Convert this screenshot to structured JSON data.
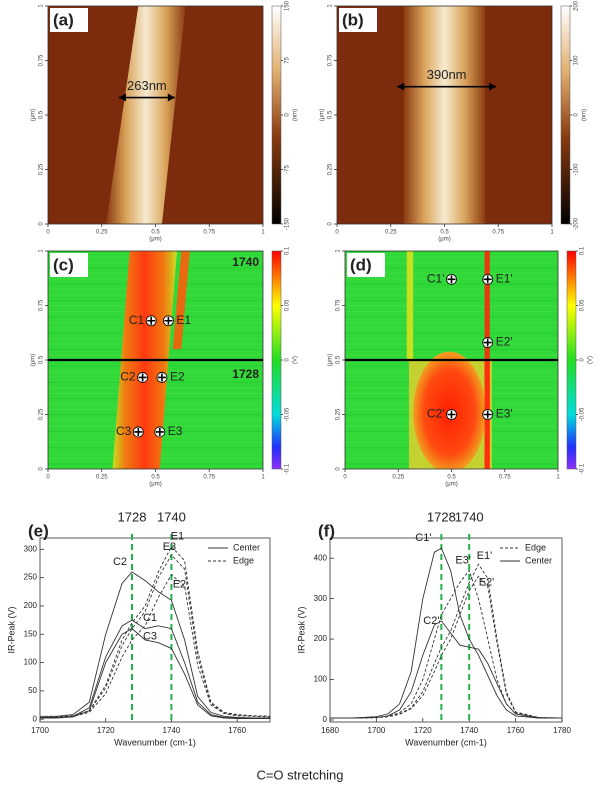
{
  "figure": {
    "panels": [
      {
        "label": "(a)",
        "kind": "height",
        "xlim": [
          0,
          1
        ],
        "ylim": [
          0,
          1
        ],
        "xticks": [
          0,
          0.25,
          0.5,
          0.75,
          1
        ],
        "yticks": [
          0,
          0.25,
          0.5,
          0.75,
          1
        ],
        "xlabel": "(μm)",
        "ylabel": "(μm)",
        "colorbar": {
          "lim": [
            -150,
            150
          ],
          "ticks": [
            150,
            75,
            0,
            -75,
            -150
          ],
          "label": "(nm)"
        },
        "width_label": "263nm"
      },
      {
        "label": "(b)",
        "kind": "height",
        "xlim": [
          0,
          1
        ],
        "ylim": [
          0,
          1
        ],
        "xticks": [
          0,
          0.25,
          0.5,
          0.75,
          1
        ],
        "yticks": [
          0,
          0.25,
          0.5,
          0.75,
          1
        ],
        "xlabel": "(μm)",
        "ylabel": "(μm)",
        "colorbar": {
          "lim": [
            -200,
            200
          ],
          "ticks": [
            200,
            100,
            0,
            -100,
            -200
          ],
          "label": "(nm)"
        },
        "width_label": "390nm"
      },
      {
        "label": "(c)",
        "kind": "ir",
        "xlim": [
          0,
          1
        ],
        "ylim": [
          0,
          1
        ],
        "xticks": [
          0,
          0.25,
          0.5,
          0.75,
          1
        ],
        "yticks": [
          0,
          0.25,
          0.5,
          0.75,
          1
        ],
        "xlabel": "(μm)",
        "ylabel": "(μm)",
        "colorbar": {
          "lim": [
            -0.1,
            0.1
          ],
          "ticks": [
            0.1,
            0.05,
            0,
            -0.05,
            -0.1
          ],
          "label": "(V)"
        },
        "divider_y": 0.5,
        "map_labels": [
          "1740",
          "1728"
        ],
        "points": [
          {
            "label": "C1",
            "x": 0.48,
            "y": 0.68
          },
          {
            "label": "E1",
            "x": 0.56,
            "y": 0.68
          },
          {
            "label": "C2",
            "x": 0.44,
            "y": 0.42
          },
          {
            "label": "E2",
            "x": 0.53,
            "y": 0.42
          },
          {
            "label": "C3",
            "x": 0.42,
            "y": 0.17
          },
          {
            "label": "E3",
            "x": 0.52,
            "y": 0.17
          }
        ]
      },
      {
        "label": "(d)",
        "kind": "ir",
        "xlim": [
          0,
          1
        ],
        "ylim": [
          0,
          1
        ],
        "xticks": [
          0,
          0.25,
          0.5,
          0.75,
          1
        ],
        "yticks": [
          0,
          0.25,
          0.5,
          0.75,
          1
        ],
        "xlabel": "(μm)",
        "ylabel": "(μm)",
        "colorbar": {
          "lim": [
            -0.1,
            0.1
          ],
          "ticks": [
            0.1,
            0.05,
            0,
            -0.05,
            -0.1
          ],
          "label": "(V)"
        },
        "divider_y": 0.5,
        "points": [
          {
            "label": "C1'",
            "x": 0.5,
            "y": 0.87
          },
          {
            "label": "E1'",
            "x": 0.67,
            "y": 0.87
          },
          {
            "label": "E2'",
            "x": 0.67,
            "y": 0.58
          },
          {
            "label": "C2'",
            "x": 0.5,
            "y": 0.25
          },
          {
            "label": "E3'",
            "x": 0.67,
            "y": 0.25
          }
        ]
      }
    ],
    "caption": "C=O stretching"
  },
  "chart_data": [
    {
      "type": "line",
      "panel_label": "(e)",
      "xlabel": "Wavenumber (cm-1)",
      "ylabel": "IR-Peak (V)",
      "xlim": [
        1700,
        1770
      ],
      "ylim": [
        -5,
        320
      ],
      "xticks": [
        1700,
        1720,
        1740,
        1760
      ],
      "yticks": [
        0,
        50,
        100,
        150,
        200,
        250,
        300
      ],
      "vlines": [
        1728,
        1740
      ],
      "vline_color": "#22b04a",
      "legend": {
        "position": "upper right",
        "entries": [
          {
            "name": "Center",
            "style": "solid"
          },
          {
            "name": "Edge",
            "style": "dashed"
          }
        ]
      },
      "x": [
        1700,
        1705,
        1710,
        1715,
        1720,
        1725,
        1728,
        1732,
        1736,
        1740,
        1744,
        1748,
        1752,
        1756,
        1760,
        1765,
        1770
      ],
      "series": [
        {
          "label": "C1",
          "style": "solid",
          "color": "#333333",
          "values": [
            3,
            3,
            5,
            20,
            110,
            165,
            175,
            160,
            165,
            160,
            100,
            30,
            8,
            3,
            2,
            2,
            2
          ]
        },
        {
          "label": "C2",
          "style": "solid",
          "color": "#333333",
          "values": [
            5,
            5,
            8,
            30,
            150,
            240,
            260,
            245,
            225,
            210,
            140,
            40,
            12,
            5,
            3,
            2,
            2
          ]
        },
        {
          "label": "C3",
          "style": "solid",
          "color": "#333333",
          "values": [
            2,
            2,
            4,
            15,
            100,
            150,
            160,
            140,
            135,
            125,
            80,
            25,
            6,
            2,
            1,
            1,
            1
          ]
        },
        {
          "label": "E1",
          "style": "dashed",
          "color": "#333333",
          "values": [
            3,
            4,
            6,
            15,
            60,
            140,
            170,
            200,
            260,
            305,
            280,
            120,
            30,
            12,
            8,
            6,
            5
          ]
        },
        {
          "label": "E2",
          "style": "dashed",
          "color": "#333333",
          "values": [
            3,
            4,
            5,
            12,
            45,
            110,
            140,
            165,
            215,
            255,
            235,
            95,
            25,
            10,
            6,
            5,
            4
          ]
        },
        {
          "label": "E3",
          "style": "dashed",
          "color": "#333333",
          "values": [
            3,
            4,
            6,
            14,
            55,
            130,
            160,
            190,
            250,
            290,
            265,
            110,
            28,
            11,
            7,
            6,
            5
          ]
        }
      ]
    },
    {
      "type": "line",
      "panel_label": "(f)",
      "xlabel": "Wavenumber (cm-1)",
      "ylabel": "IR-Peak (V)",
      "xlim": [
        1680,
        1780
      ],
      "ylim": [
        -5,
        450
      ],
      "xticks": [
        1680,
        1700,
        1720,
        1740,
        1760,
        1780
      ],
      "yticks": [
        0,
        100,
        200,
        300,
        400
      ],
      "vlines": [
        1728,
        1740
      ],
      "vline_color": "#22b04a",
      "legend": {
        "position": "upper right",
        "entries": [
          {
            "name": "Edge",
            "style": "dashed"
          },
          {
            "name": "Center",
            "style": "solid"
          }
        ]
      },
      "x": [
        1680,
        1690,
        1700,
        1705,
        1710,
        1715,
        1720,
        1725,
        1728,
        1732,
        1736,
        1740,
        1744,
        1748,
        1752,
        1756,
        1760,
        1770,
        1780
      ],
      "series": [
        {
          "label": "C1'",
          "style": "solid",
          "color": "#333333",
          "values": [
            5,
            5,
            8,
            15,
            40,
            120,
            300,
            415,
            425,
            370,
            260,
            200,
            160,
            110,
            60,
            25,
            10,
            5,
            5
          ]
        },
        {
          "label": "C2'",
          "style": "solid",
          "color": "#333333",
          "values": [
            5,
            5,
            6,
            10,
            25,
            70,
            160,
            235,
            245,
            215,
            185,
            180,
            175,
            140,
            90,
            40,
            15,
            5,
            5
          ]
        },
        {
          "label": "E1'",
          "style": "dashed",
          "color": "#333333",
          "values": [
            5,
            5,
            6,
            8,
            15,
            30,
            70,
            140,
            180,
            220,
            280,
            340,
            385,
            350,
            200,
            70,
            20,
            6,
            5
          ]
        },
        {
          "label": "E2'",
          "style": "dashed",
          "color": "#333333",
          "values": [
            5,
            5,
            6,
            8,
            14,
            28,
            60,
            120,
            160,
            200,
            260,
            320,
            355,
            330,
            190,
            65,
            18,
            6,
            5
          ]
        },
        {
          "label": "E3'",
          "style": "dashed",
          "color": "#333333",
          "values": [
            5,
            5,
            6,
            9,
            18,
            40,
            100,
            200,
            260,
            300,
            340,
            370,
            300,
            200,
            100,
            40,
            15,
            6,
            5
          ]
        }
      ]
    }
  ]
}
